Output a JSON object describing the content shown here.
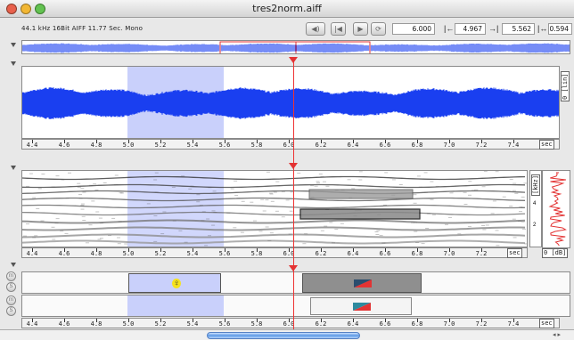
{
  "window": {
    "title": "tres2norm.aiff",
    "colors": {
      "close": "#e8604c",
      "minimize": "#f2b734",
      "zoom": "#63c251"
    }
  },
  "infobar": {
    "file_info": "44.1 kHz   16Bit AIFF    11.77 Sec.  Mono",
    "buttons": [
      {
        "name": "volume-button",
        "icon": "speaker-icon",
        "glyph": "◀)"
      },
      {
        "name": "rewind-button",
        "icon": "skip-back-icon",
        "glyph": "|◀"
      },
      {
        "name": "play-button",
        "icon": "play-icon",
        "glyph": "▶"
      },
      {
        "name": "loop-button",
        "icon": "loop-icon",
        "glyph": "⟳"
      }
    ],
    "position_value": "6.000",
    "sel_start_icon": "|←",
    "sel_start_value": "4.967",
    "sel_end_icon": "→|",
    "sel_end_value": "5.562",
    "sel_length_icon": "|↔|",
    "sel_length_value": "0.594"
  },
  "timeline": {
    "ticks": [
      "4.4",
      "4.6",
      "4.8",
      "5.0",
      "5.2",
      "5.4",
      "5.6",
      "5.8",
      "6.0",
      "6.2",
      "6.4",
      "6.6",
      "6.8",
      "7.0",
      "7.2",
      "7.4"
    ],
    "unit": "sec"
  },
  "waveform": {
    "side_label": "0 [lin]",
    "color": "#1a3ff0"
  },
  "spectrogram": {
    "side_label": "[kHz]",
    "khz_ticks": [
      "4",
      "2"
    ],
    "db_label": "0 [dB]"
  },
  "annotations": {
    "row_buttons": [
      "m",
      "S"
    ],
    "marker_glyph": "♀"
  },
  "colors": {
    "selection": "#c9d0fb",
    "cursor": "#e33333",
    "overview_box": "#e33333"
  }
}
